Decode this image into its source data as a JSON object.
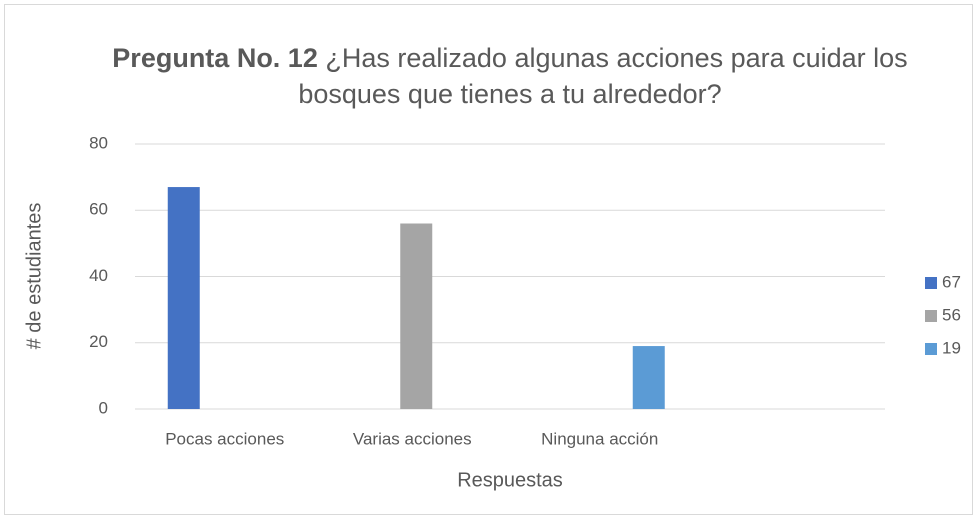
{
  "chart_data": {
    "type": "bar",
    "title_bold": "Pregunta No. 12",
    "title": "¿Has realizado algunas acciones para cuidar los bosques que tienes a tu alrededor?",
    "x_label": "Respuestas",
    "y_label": "# de estudiantes",
    "categories": [
      "Pocas acciones",
      "Varias acciones",
      "Ninguna acción",
      null
    ],
    "series": [
      {
        "name": "67",
        "color": "#4472c4",
        "values": [
          67,
          null,
          null,
          null
        ]
      },
      {
        "name": "56",
        "color": "#a5a5a5",
        "values": [
          null,
          56,
          null,
          null
        ]
      },
      {
        "name": "19",
        "color": "#5b9bd5",
        "values": [
          null,
          null,
          19,
          null
        ]
      }
    ],
    "ylim": [
      0,
      80
    ],
    "yticks": [
      0,
      20,
      40,
      60,
      80
    ],
    "grid": true,
    "legend": "right"
  }
}
